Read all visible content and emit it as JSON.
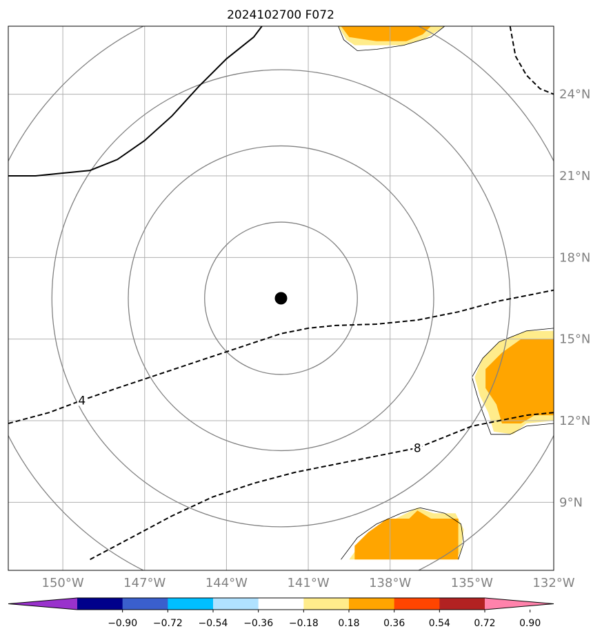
{
  "title": "2024102700 F072",
  "map": {
    "lon_range": [
      -152.0,
      -132.0
    ],
    "lat_range": [
      6.5,
      26.5
    ],
    "grid_color": "#b0b0b0",
    "lon_ticks": [
      {
        "value": -150,
        "label": "150°W"
      },
      {
        "value": -147,
        "label": "147°W"
      },
      {
        "value": -144,
        "label": "144°W"
      },
      {
        "value": -141,
        "label": "141°W"
      },
      {
        "value": -138,
        "label": "138°W"
      },
      {
        "value": -135,
        "label": "135°W"
      },
      {
        "value": -132,
        "label": "132°W"
      }
    ],
    "lat_ticks": [
      {
        "value": 9,
        "label": "9°N"
      },
      {
        "value": 12,
        "label": "12°N"
      },
      {
        "value": 15,
        "label": "15°N"
      },
      {
        "value": 18,
        "label": "18°N"
      },
      {
        "value": 21,
        "label": "21°N"
      },
      {
        "value": 24,
        "label": "24°N"
      }
    ],
    "storm_center": {
      "lon": -142.0,
      "lat": 16.5,
      "color": "#000000"
    },
    "range_rings": {
      "center_lon": -142.0,
      "center_lat": 16.5,
      "radii_deg": [
        2.8,
        5.6,
        8.4,
        11.2
      ],
      "color": "#808080"
    },
    "contours": [
      {
        "style": "solid",
        "color": "#000000",
        "label": "",
        "points": [
          [
            -152.0,
            21.0
          ],
          [
            -151.0,
            21.0
          ],
          [
            -150.0,
            21.1
          ],
          [
            -149.0,
            21.2
          ],
          [
            -148.0,
            21.6
          ],
          [
            -147.0,
            22.3
          ],
          [
            -146.0,
            23.2
          ],
          [
            -145.0,
            24.3
          ],
          [
            -144.0,
            25.3
          ],
          [
            -143.0,
            26.1
          ],
          [
            -142.7,
            26.5
          ]
        ]
      },
      {
        "style": "dashed",
        "color": "#000000",
        "label": "",
        "points": [
          [
            -133.6,
            26.5
          ],
          [
            -133.4,
            25.4
          ],
          [
            -133.0,
            24.7
          ],
          [
            -132.5,
            24.2
          ],
          [
            -132.0,
            24.0
          ]
        ]
      },
      {
        "style": "dashed",
        "color": "#000000",
        "label": "4",
        "label_lon": -149.3,
        "label_lat": 12.75,
        "points": [
          [
            -152.0,
            11.9
          ],
          [
            -150.5,
            12.3
          ],
          [
            -149.3,
            12.75
          ],
          [
            -148.0,
            13.2
          ],
          [
            -146.5,
            13.7
          ],
          [
            -145.0,
            14.2
          ],
          [
            -143.5,
            14.7
          ],
          [
            -142.0,
            15.2
          ],
          [
            -141.0,
            15.4
          ],
          [
            -140.0,
            15.5
          ],
          [
            -138.5,
            15.55
          ],
          [
            -137.0,
            15.7
          ],
          [
            -135.5,
            16.0
          ],
          [
            -134.0,
            16.4
          ],
          [
            -133.0,
            16.6
          ],
          [
            -132.0,
            16.8
          ]
        ]
      },
      {
        "style": "dashed",
        "color": "#000000",
        "label": "8",
        "label_lon": -137.0,
        "label_lat": 11.0,
        "points": [
          [
            -149.0,
            6.9
          ],
          [
            -147.5,
            7.7
          ],
          [
            -146.0,
            8.5
          ],
          [
            -144.5,
            9.2
          ],
          [
            -143.0,
            9.7
          ],
          [
            -141.5,
            10.1
          ],
          [
            -140.0,
            10.4
          ],
          [
            -138.5,
            10.7
          ],
          [
            -137.0,
            11.0
          ],
          [
            -136.0,
            11.4
          ],
          [
            -135.0,
            11.8
          ],
          [
            -134.0,
            12.0
          ],
          [
            -133.0,
            12.2
          ],
          [
            -132.0,
            12.3
          ]
        ]
      }
    ],
    "shaded_regions": [
      {
        "level": "0.18-0.36",
        "color": "#ffec8b",
        "points": [
          [
            -139.9,
            26.5
          ],
          [
            -139.6,
            26.0
          ],
          [
            -139.3,
            25.8
          ],
          [
            -138.5,
            25.8
          ],
          [
            -137.5,
            25.8
          ],
          [
            -136.8,
            26.0
          ],
          [
            -136.3,
            26.3
          ],
          [
            -136.0,
            26.5
          ]
        ]
      },
      {
        "level": "0.36-0.54",
        "color": "#ffa500",
        "points": [
          [
            -139.8,
            26.5
          ],
          [
            -139.5,
            26.1
          ],
          [
            -138.5,
            25.95
          ],
          [
            -137.4,
            25.95
          ],
          [
            -136.8,
            26.2
          ],
          [
            -136.5,
            26.5
          ]
        ]
      },
      {
        "level": "0.18-0.36",
        "color": "#ffec8b",
        "points": [
          [
            -132.0,
            15.3
          ],
          [
            -133.0,
            15.3
          ],
          [
            -134.0,
            14.9
          ],
          [
            -134.6,
            14.3
          ],
          [
            -134.9,
            13.6
          ],
          [
            -134.7,
            12.9
          ],
          [
            -134.4,
            12.3
          ],
          [
            -134.2,
            11.6
          ],
          [
            -133.5,
            11.5
          ],
          [
            -133.0,
            11.9
          ],
          [
            -132.0,
            12.0
          ]
        ]
      },
      {
        "level": "0.36-0.54",
        "color": "#ffa500",
        "points": [
          [
            -132.0,
            15.0
          ],
          [
            -133.2,
            15.0
          ],
          [
            -133.9,
            14.5
          ],
          [
            -134.5,
            13.9
          ],
          [
            -134.5,
            13.2
          ],
          [
            -134.1,
            12.6
          ],
          [
            -133.9,
            11.9
          ],
          [
            -133.2,
            11.9
          ],
          [
            -132.7,
            12.2
          ],
          [
            -132.0,
            12.2
          ]
        ]
      },
      {
        "level": "0.18-0.36",
        "color": "#ffec8b",
        "points": [
          [
            -139.5,
            6.9
          ],
          [
            -139.0,
            7.6
          ],
          [
            -138.4,
            8.1
          ],
          [
            -137.6,
            8.5
          ],
          [
            -137.0,
            8.8
          ],
          [
            -136.4,
            8.6
          ],
          [
            -135.6,
            8.6
          ],
          [
            -135.3,
            8.0
          ],
          [
            -135.4,
            7.2
          ],
          [
            -135.6,
            6.9
          ]
        ]
      },
      {
        "level": "0.36-0.54",
        "color": "#ffa500",
        "points": [
          [
            -139.3,
            6.9
          ],
          [
            -139.3,
            7.4
          ],
          [
            -138.8,
            7.9
          ],
          [
            -138.1,
            8.4
          ],
          [
            -137.3,
            8.4
          ],
          [
            -137.0,
            8.7
          ],
          [
            -136.5,
            8.4
          ],
          [
            -135.5,
            8.4
          ],
          [
            -135.5,
            6.9
          ]
        ]
      }
    ],
    "shade_outlines": [
      {
        "color": "#000000",
        "points": [
          [
            -139.9,
            26.5
          ],
          [
            -139.7,
            26.0
          ],
          [
            -139.2,
            25.6
          ],
          [
            -138.5,
            25.65
          ],
          [
            -137.5,
            25.8
          ],
          [
            -136.5,
            26.1
          ],
          [
            -136.0,
            26.5
          ]
        ]
      },
      {
        "color": "#000000",
        "points": [
          [
            -132.0,
            15.4
          ],
          [
            -133.0,
            15.3
          ],
          [
            -134.0,
            14.9
          ],
          [
            -134.6,
            14.3
          ],
          [
            -135.0,
            13.6
          ],
          [
            -134.8,
            12.9
          ],
          [
            -134.6,
            12.3
          ],
          [
            -134.3,
            11.5
          ],
          [
            -133.6,
            11.5
          ],
          [
            -133.0,
            11.8
          ],
          [
            -132.0,
            11.9
          ]
        ]
      },
      {
        "color": "#000000",
        "points": [
          [
            -139.8,
            6.9
          ],
          [
            -139.2,
            7.7
          ],
          [
            -138.5,
            8.2
          ],
          [
            -137.6,
            8.6
          ],
          [
            -136.9,
            8.8
          ],
          [
            -136.0,
            8.6
          ],
          [
            -135.4,
            8.2
          ],
          [
            -135.3,
            7.5
          ],
          [
            -135.5,
            6.9
          ]
        ]
      }
    ]
  },
  "colorbar": {
    "colors": [
      "#9932cc",
      "#00008b",
      "#3a5fcd",
      "#00bfff",
      "#b0e2ff",
      "#ffffff",
      "#ffec8b",
      "#ffa500",
      "#ff4500",
      "#b22222",
      "#ff82ab"
    ],
    "tick_labels": [
      "−0.90",
      "−0.72",
      "−0.54",
      "−0.36",
      "−0.18",
      "0.18",
      "0.36",
      "0.54",
      "0.72",
      "0.90"
    ]
  }
}
